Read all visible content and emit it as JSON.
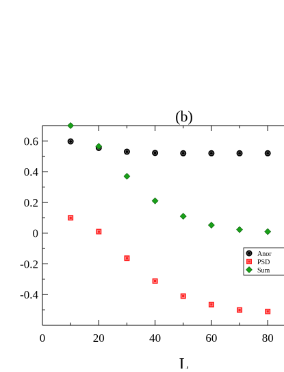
{
  "chart_data": {
    "type": "scatter",
    "title": "(b)",
    "xlabel": "L",
    "ylabel": "",
    "xlim": [
      0,
      87
    ],
    "ylim": [
      -0.6,
      0.7
    ],
    "x_ticks": [
      0,
      20,
      40,
      60,
      80
    ],
    "x_tick_labels": [
      "0",
      "20",
      "40",
      "60",
      "80"
    ],
    "y_ticks": [
      -0.4,
      -0.2,
      0,
      0.2,
      0.4,
      0.6
    ],
    "y_tick_labels": [
      "-0.4",
      "-0.2",
      "0",
      "0.2",
      "0.4",
      "0.6"
    ],
    "grid": false,
    "legend_position": "bottom-right",
    "series": [
      {
        "name": "Anor",
        "marker": "circle",
        "color": "#000000",
        "x": [
          10,
          20,
          30,
          40,
          50,
          60,
          70,
          80
        ],
        "y": [
          0.597,
          0.555,
          0.53,
          0.522,
          0.52,
          0.52,
          0.52,
          0.52
        ]
      },
      {
        "name": "PSD",
        "marker": "square",
        "color": "#ff2020",
        "x": [
          10,
          20,
          30,
          40,
          50,
          60,
          70,
          80
        ],
        "y": [
          0.1,
          0.01,
          -0.163,
          -0.312,
          -0.41,
          -0.465,
          -0.5,
          -0.51
        ]
      },
      {
        "name": "Sum",
        "marker": "diamond",
        "color": "#18a018",
        "x": [
          10,
          20,
          30,
          40,
          50,
          60,
          70,
          80
        ],
        "y": [
          0.7,
          0.565,
          0.37,
          0.21,
          0.11,
          0.052,
          0.023,
          0.01
        ]
      }
    ]
  }
}
